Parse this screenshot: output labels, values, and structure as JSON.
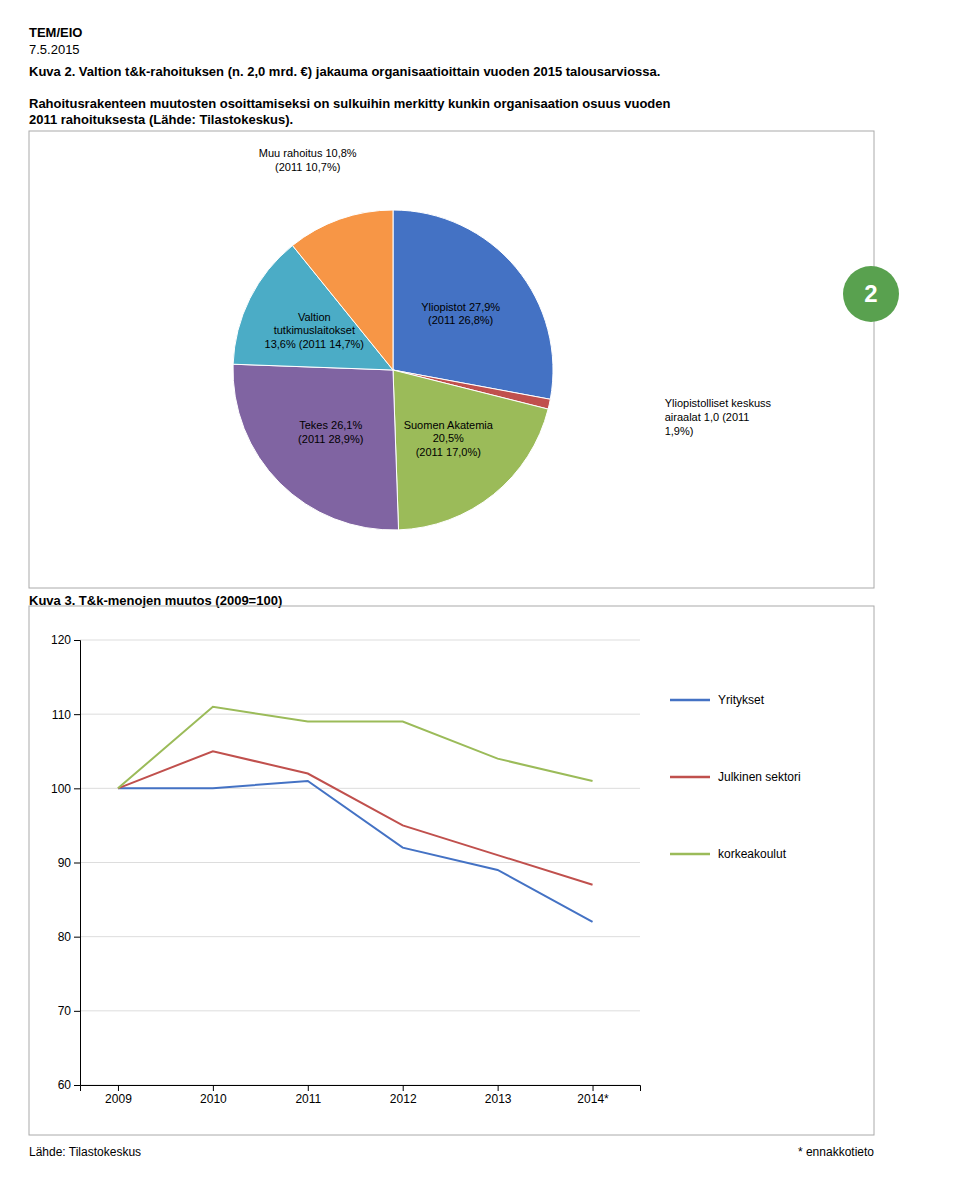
{
  "chart_data": [
    {
      "type": "pie",
      "title": "Kuva 2. Valtion t&k-rahoituksen (n. 2,0 mrd. €) jakauma organisaatioittain vuoden 2015 talousarviossa.",
      "subtitle": "Rahoitusrakenteen muutosten osoittamiseksi on sulkuihin merkitty kunkin organisaation osuus vuoden\n2011 rahoituksesta (Lähde: Tilastokeskus).",
      "values": [
        27.9,
        1.0,
        20.5,
        26.1,
        13.6,
        10.8
      ],
      "value_labels": [
        "Yliopistot 27,9%\n(2011 26,8%)",
        "Yliopistolliset keskuss\nairaalat 1,0 (2011\n1,9%)",
        "Suomen Akatemia\n20,5%\n(2011 17,0%)",
        "Tekes 26,1%\n(2011 28,9%)",
        "Valtion\ntutkimuslaitokset\n13,6% (2011 14,7%)",
        "Muu rahoitus 10,8%\n(2011 10,7%)"
      ],
      "colors": [
        "#4472C4",
        "#C0504D",
        "#9BBB59",
        "#8064A2",
        "#4BACC6",
        "#F79646"
      ],
      "data_labels": true,
      "annotations": [
        "TEM/EIO",
        "7.5.2015",
        "2"
      ]
    },
    {
      "type": "line",
      "title": "Kuva 3. T&k-menojen muutos (2009=100)",
      "x": [
        2009,
        2010,
        2011,
        2012,
        2013,
        2014
      ],
      "xlim": [
        2008.6,
        2014.5
      ],
      "xticks": [
        2009,
        2010,
        2011,
        2012,
        2013,
        {
          "value": 2014,
          "label": "2014*"
        }
      ],
      "ylim": [
        60,
        120
      ],
      "yticks": [
        60,
        70,
        80,
        90,
        100,
        110,
        120
      ],
      "grid": "y",
      "legend": "right",
      "series": [
        {
          "name": "Yritykset",
          "color": "#4472C4",
          "values": [
            100,
            100,
            101,
            92,
            89,
            82
          ]
        },
        {
          "name": "Julkinen sektori",
          "color": "#C0504D",
          "values": [
            100,
            105,
            102,
            95,
            91,
            87
          ]
        },
        {
          "name": "korkeakoulut",
          "color": "#9BBB59",
          "values": [
            100,
            111,
            109,
            109,
            104,
            101
          ]
        }
      ],
      "annotations": [
        "Lähde: Tilastokeskus",
        "* ennakkotieto"
      ]
    }
  ]
}
